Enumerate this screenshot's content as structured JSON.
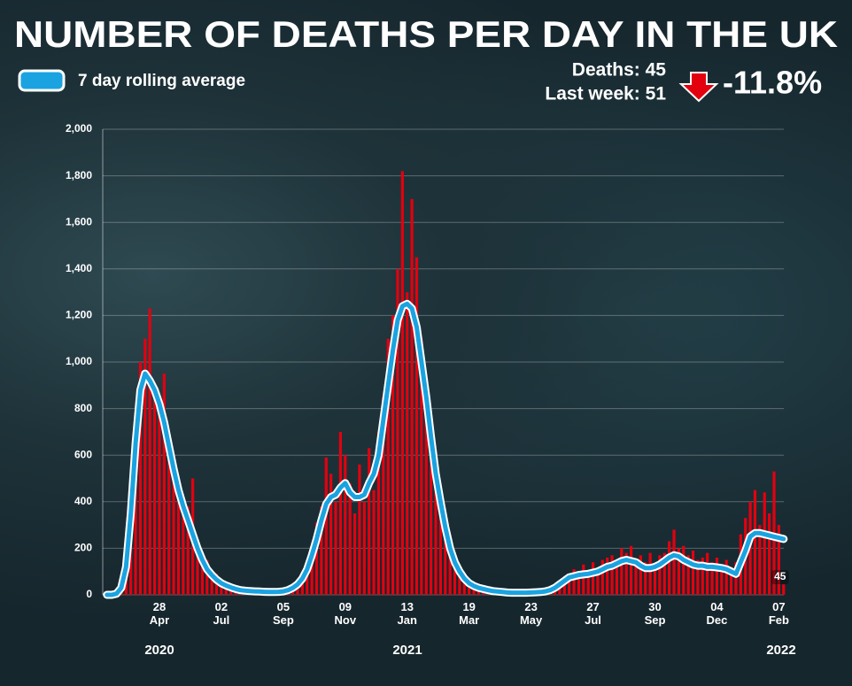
{
  "chart_data": {
    "type": "bar-line",
    "title": "NUMBER OF DEATHS PER DAY IN THE UK",
    "stats": {
      "deaths": "Deaths: 45",
      "last_week": "Last week: 51",
      "change": "-11.8%"
    },
    "year_labels": [
      "2020",
      "2021",
      "2022"
    ],
    "categories": [
      null,
      null,
      null,
      null,
      null,
      null,
      null,
      null,
      null,
      null,
      null,
      "28\nApr",
      null,
      null,
      null,
      null,
      null,
      null,
      null,
      null,
      null,
      null,
      null,
      null,
      "02\nJul",
      null,
      null,
      null,
      null,
      null,
      null,
      null,
      null,
      null,
      null,
      null,
      null,
      "05\nSep",
      null,
      null,
      null,
      null,
      null,
      null,
      null,
      null,
      null,
      null,
      null,
      null,
      "09\nNov",
      null,
      null,
      null,
      null,
      null,
      null,
      null,
      null,
      null,
      null,
      null,
      null,
      "13\nJan",
      null,
      null,
      null,
      null,
      null,
      null,
      null,
      null,
      null,
      null,
      null,
      null,
      "19\nMar",
      null,
      null,
      null,
      null,
      null,
      null,
      null,
      null,
      null,
      null,
      null,
      null,
      "23\nMay",
      null,
      null,
      null,
      null,
      null,
      null,
      null,
      null,
      null,
      null,
      null,
      null,
      "27\nJul",
      null,
      null,
      null,
      null,
      null,
      null,
      null,
      null,
      null,
      null,
      null,
      null,
      "30\nSep",
      null,
      null,
      null,
      null,
      null,
      null,
      null,
      null,
      null,
      null,
      null,
      null,
      "04\nDec",
      null,
      null,
      null,
      null,
      null,
      null,
      null,
      null,
      null,
      null,
      null,
      null,
      "07\nFeb",
      null
    ],
    "bar_color": "#e3000f",
    "bar_values": [
      0,
      2,
      8,
      40,
      150,
      420,
      700,
      1000,
      1100,
      1230,
      900,
      780,
      950,
      600,
      520,
      480,
      350,
      380,
      500,
      190,
      120,
      150,
      70,
      90,
      45,
      55,
      30,
      35,
      18,
      25,
      12,
      20,
      10,
      18,
      8,
      15,
      12,
      20,
      14,
      35,
      50,
      80,
      140,
      190,
      310,
      380,
      590,
      520,
      400,
      700,
      600,
      480,
      350,
      560,
      400,
      630,
      450,
      700,
      850,
      1100,
      1200,
      1400,
      1820,
      1300,
      1700,
      1450,
      1100,
      900,
      700,
      580,
      450,
      330,
      230,
      170,
      110,
      80,
      60,
      45,
      35,
      30,
      22,
      18,
      15,
      14,
      11,
      8,
      12,
      7,
      10,
      9,
      14,
      10,
      18,
      25,
      35,
      55,
      75,
      90,
      110,
      95,
      130,
      100,
      140,
      110,
      150,
      160,
      170,
      130,
      200,
      180,
      210,
      150,
      170,
      140,
      180,
      130,
      170,
      180,
      230,
      280,
      200,
      210,
      170,
      190,
      150,
      160,
      180,
      140,
      160,
      130,
      150,
      120,
      140,
      260,
      330,
      400,
      450,
      300,
      440,
      350,
      530,
      300,
      45
    ],
    "series": [
      {
        "name": "7 day rolling average",
        "color": "#1aa3e0",
        "values": [
          0,
          0,
          5,
          30,
          120,
          350,
          650,
          880,
          950,
          920,
          880,
          820,
          740,
          640,
          540,
          450,
          380,
          320,
          260,
          200,
          150,
          110,
          85,
          65,
          50,
          40,
          32,
          25,
          20,
          18,
          16,
          15,
          14,
          13,
          12,
          12,
          13,
          15,
          20,
          30,
          45,
          70,
          110,
          170,
          240,
          320,
          390,
          420,
          430,
          460,
          480,
          440,
          420,
          420,
          430,
          480,
          520,
          600,
          750,
          900,
          1050,
          1180,
          1240,
          1250,
          1230,
          1150,
          1000,
          850,
          680,
          520,
          400,
          290,
          200,
          140,
          100,
          70,
          50,
          38,
          30,
          25,
          20,
          16,
          14,
          12,
          10,
          9,
          9,
          9,
          9,
          10,
          11,
          12,
          15,
          20,
          30,
          45,
          60,
          75,
          80,
          85,
          88,
          90,
          95,
          100,
          110,
          120,
          125,
          135,
          145,
          150,
          145,
          140,
          125,
          115,
          115,
          120,
          130,
          145,
          160,
          170,
          165,
          150,
          140,
          130,
          125,
          125,
          120,
          120,
          118,
          115,
          110,
          100,
          90,
          140,
          190,
          250,
          265,
          265,
          260,
          255,
          250,
          245,
          240
        ]
      }
    ],
    "ylim": [
      0,
      2000
    ],
    "yticks": [
      0,
      200,
      400,
      600,
      800,
      {
        "value": 1000,
        "label": "1,000"
      },
      {
        "value": 1200,
        "label": "1,200"
      },
      {
        "value": 1400,
        "label": "1,400"
      },
      {
        "value": 1600,
        "label": "1,600"
      },
      {
        "value": 1800,
        "label": "1,800"
      },
      {
        "value": 2000,
        "label": "2,000"
      }
    ],
    "grid": true
  }
}
